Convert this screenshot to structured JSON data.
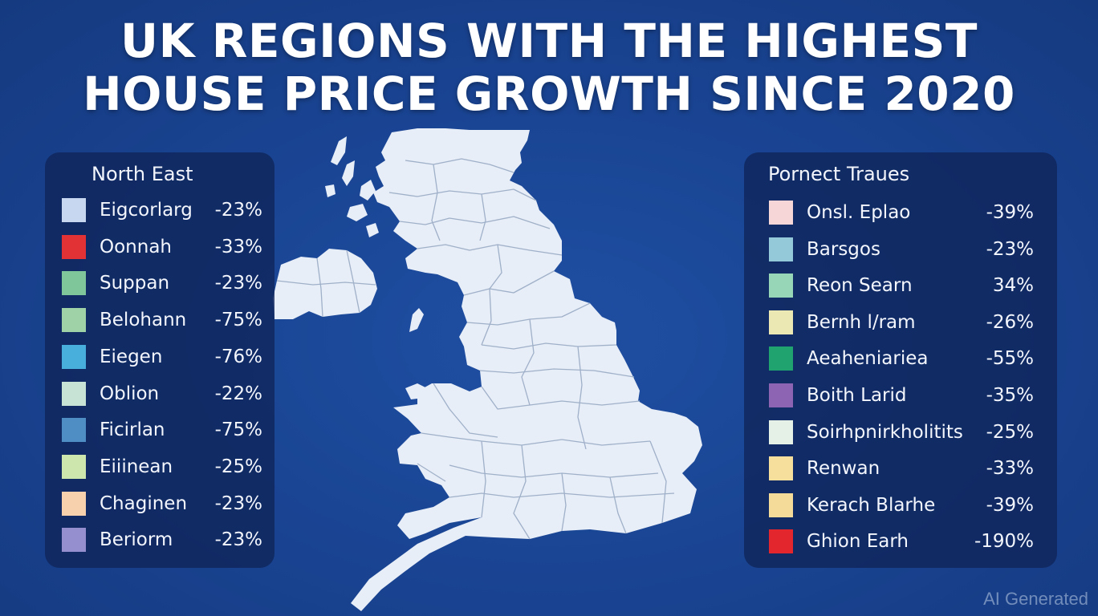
{
  "title": {
    "line1": "UK REGIONS WITH THE HIGHEST",
    "line2": "HOUSE PRICE GROWTH SINCE 2020"
  },
  "left_legend": {
    "title": "North East",
    "items": [
      {
        "label": "Eigcorlarg",
        "value": "-23%",
        "color": "#c6d7ef"
      },
      {
        "label": "Oonnah",
        "value": "-33%",
        "color": "#e23236"
      },
      {
        "label": "Suppan",
        "value": "-23%",
        "color": "#7fc79a"
      },
      {
        "label": "Belohann",
        "value": "-75%",
        "color": "#9fd3a7"
      },
      {
        "label": "Eiegen",
        "value": "-76%",
        "color": "#48aedb"
      },
      {
        "label": "Oblion",
        "value": "-22%",
        "color": "#c7e3d5"
      },
      {
        "label": "Ficirlan",
        "value": "-75%",
        "color": "#4f8ec4"
      },
      {
        "label": "Eiiinean",
        "value": "-25%",
        "color": "#cde6ae"
      },
      {
        "label": "Chaginen",
        "value": "-23%",
        "color": "#f7d1ae"
      },
      {
        "label": "Beriorm",
        "value": "-23%",
        "color": "#958fcf"
      }
    ]
  },
  "right_legend": {
    "title": "Pornect Traues",
    "items": [
      {
        "label": "Onsl. Eplao",
        "value": "-39%",
        "color": "#f6d6d6"
      },
      {
        "label": "Barsgos",
        "value": "-23%",
        "color": "#93c9d8"
      },
      {
        "label": "Reon Searn",
        "value": "34%",
        "color": "#98d6b8"
      },
      {
        "label": "Bernh l/ram",
        "value": "-26%",
        "color": "#ece8b4"
      },
      {
        "label": "Aeaheniariea",
        "value": "-55%",
        "color": "#21a36f"
      },
      {
        "label": "Boith Larid",
        "value": "-35%",
        "color": "#8d63b3"
      },
      {
        "label": "Soirhpnirkholitits",
        "value": "-25%",
        "color": "#e5f1e7"
      },
      {
        "label": "Renwan",
        "value": "-33%",
        "color": "#f6df9c"
      },
      {
        "label": "Kerach Blarhe",
        "value": "-39%",
        "color": "#f5db9a"
      },
      {
        "label": "Ghion Earh",
        "value": "-190%",
        "color": "#e3262e"
      }
    ]
  },
  "map": {
    "land_color": "#e8eef7",
    "border_color": "#9fb0c9"
  },
  "watermark": "AI Generated"
}
